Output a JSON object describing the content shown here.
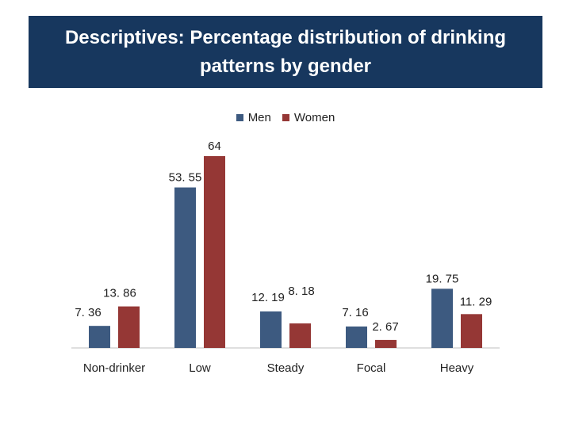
{
  "chart_data": {
    "type": "bar",
    "title": "Descriptives: Percentage distribution of drinking patterns by gender",
    "categories": [
      "Non-drinker",
      "Low",
      "Steady",
      "Focal",
      "Heavy"
    ],
    "series": [
      {
        "name": "Men",
        "color": "#3d5a80",
        "values": [
          7.36,
          53.55,
          12.19,
          7.16,
          19.75
        ],
        "labels": [
          "7. 36",
          "53. 55",
          "12. 19",
          "7. 16",
          "19. 75"
        ]
      },
      {
        "name": "Women",
        "color": "#953735",
        "values": [
          13.86,
          64,
          8.18,
          2.67,
          11.29
        ],
        "labels": [
          "13. 86",
          "64",
          "8. 18",
          "2. 67",
          "11. 29"
        ]
      }
    ],
    "xlabel": "",
    "ylabel": "",
    "ylim": [
      0,
      64
    ],
    "legend_position": "top"
  }
}
